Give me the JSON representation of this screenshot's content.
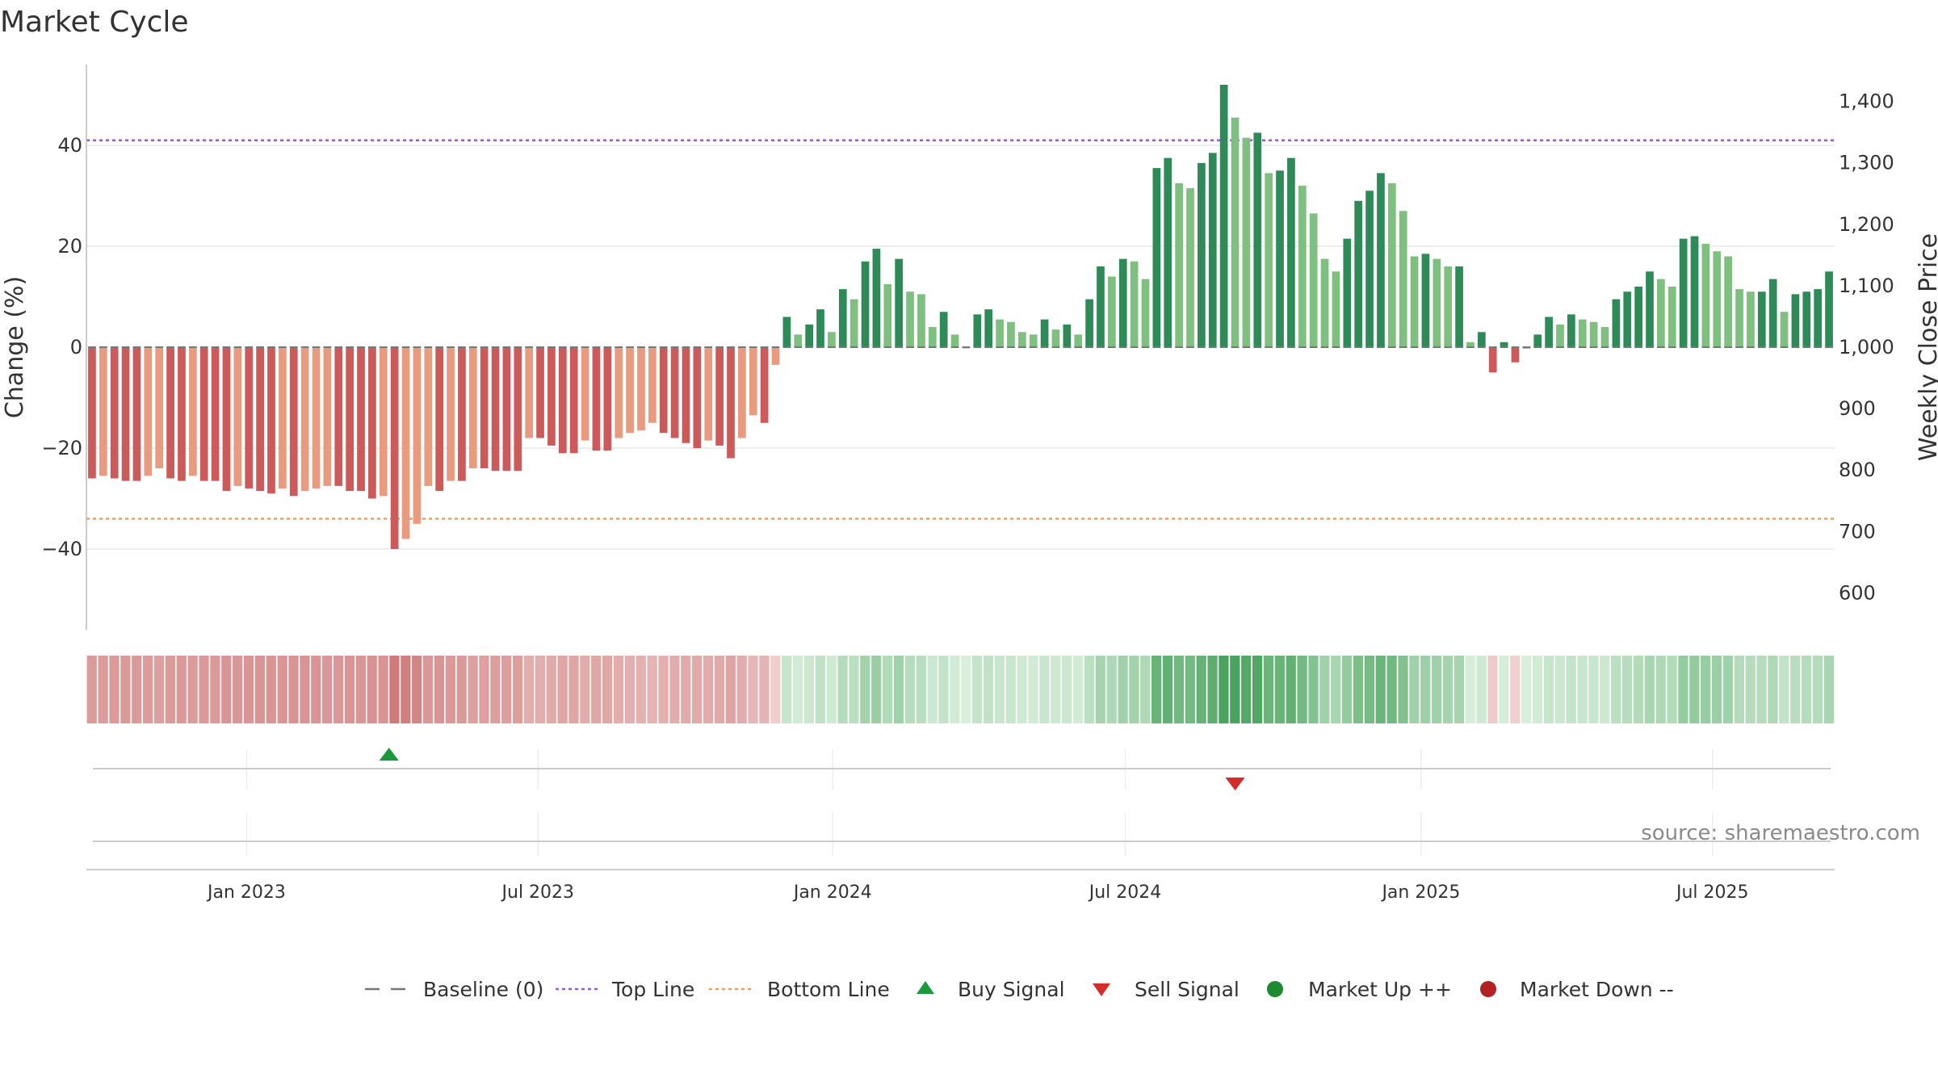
{
  "chart_data": {
    "type": "bar",
    "title": "Market Cycle",
    "ylabel_left": "Change (%)",
    "ylabel_right": "Weekly Close Price",
    "ylim_left": [
      -56,
      56
    ],
    "ylim_right": [
      540,
      1460
    ],
    "yticks_left": [
      -40,
      -20,
      0,
      20,
      40
    ],
    "yticks_left_labels": [
      "−40",
      "−20",
      "0",
      "20",
      "40"
    ],
    "yticks_right": [
      600,
      700,
      800,
      900,
      1000,
      1100,
      1200,
      1300,
      1400
    ],
    "yticks_right_labels": [
      "600",
      "700",
      "800",
      "900",
      "1,000",
      "1,100",
      "1,200",
      "1,300",
      "1,400"
    ],
    "x_ticks": [
      "Jan 2023",
      "Jul 2023",
      "Jan 2024",
      "Jul 2024",
      "Jan 2025",
      "Jul 2025"
    ],
    "x_tick_positions": [
      14.3,
      40.3,
      66.6,
      92.7,
      119.1,
      145.1
    ],
    "top_line": 41,
    "bottom_line": -34,
    "baseline": 0,
    "grid": true,
    "values": [
      -26,
      -25.5,
      -26,
      -26.5,
      -26.5,
      -25.5,
      -24,
      -26,
      -26.5,
      -25.5,
      -26.5,
      -26.5,
      -28.5,
      -27.5,
      -28,
      -28.5,
      -29,
      -28,
      -29.5,
      -28.5,
      -28,
      -27.5,
      -27.5,
      -28.5,
      -28.5,
      -30,
      -29.5,
      -40,
      -38,
      -35,
      -27.5,
      -28.5,
      -26.5,
      -26.5,
      -24,
      -24,
      -24.5,
      -24.5,
      -24.5,
      -18,
      -18,
      -19.5,
      -21,
      -21,
      -18.5,
      -20.5,
      -20.5,
      -18,
      -17,
      -16.5,
      -15,
      -17,
      -18,
      -19,
      -20,
      -18.5,
      -19.5,
      -22,
      -18,
      -13.5,
      -15,
      -3.5,
      6,
      2.5,
      4.5,
      7.5,
      3,
      11.5,
      9.5,
      17,
      19.5,
      12.5,
      17.5,
      11,
      10.5,
      4,
      7,
      2.5,
      0,
      6.5,
      7.5,
      5.5,
      5,
      3,
      2.5,
      5.5,
      3.5,
      4.5,
      2.5,
      9.5,
      16,
      14,
      17.5,
      17,
      13.5,
      35.5,
      37.5,
      32.5,
      31.5,
      36.5,
      38.5,
      52,
      45.5,
      41.5,
      42.5,
      34.5,
      35,
      37.5,
      32,
      26.5,
      17.5,
      15,
      21.5,
      29,
      31,
      34.5,
      32.5,
      27,
      18,
      18.5,
      17.5,
      16,
      16,
      1,
      3,
      -5,
      1,
      -3,
      0,
      2.5,
      6,
      4.5,
      6.5,
      5.5,
      5,
      4,
      9.5,
      11,
      12,
      15,
      13.5,
      12,
      21.5,
      22,
      20.5,
      19,
      18,
      11.5,
      11,
      11,
      13.5,
      7,
      10.5,
      11,
      11.5,
      15
    ]
  },
  "source_text": "source: sharemaestro.com",
  "legend": {
    "items": [
      {
        "key": "baseline",
        "label": "Baseline (0)"
      },
      {
        "key": "top_line",
        "label": "Top Line"
      },
      {
        "key": "bottom_line",
        "label": "Bottom Line"
      },
      {
        "key": "buy_signal",
        "label": "Buy Signal"
      },
      {
        "key": "sell_signal",
        "label": "Sell Signal"
      },
      {
        "key": "market_up",
        "label": "Market Up ++"
      },
      {
        "key": "market_down",
        "label": "Market Down --"
      }
    ]
  },
  "signals": {
    "buy": [
      {
        "index": 26.5
      }
    ],
    "sell": [
      {
        "index": 102
      }
    ]
  },
  "colors": {
    "dark_red": "#cc5a5a",
    "light_red": "#e89b7e",
    "dark_green": "#2e8b57",
    "light_green": "#7fbf7f",
    "top_line": "#9b59d0",
    "bottom_line": "#f0a05a",
    "buy": "#1a9a3c",
    "sell": "#d62b2b",
    "market_up": "#1e8a2e",
    "market_down": "#b22222",
    "baseline": "#777777"
  }
}
